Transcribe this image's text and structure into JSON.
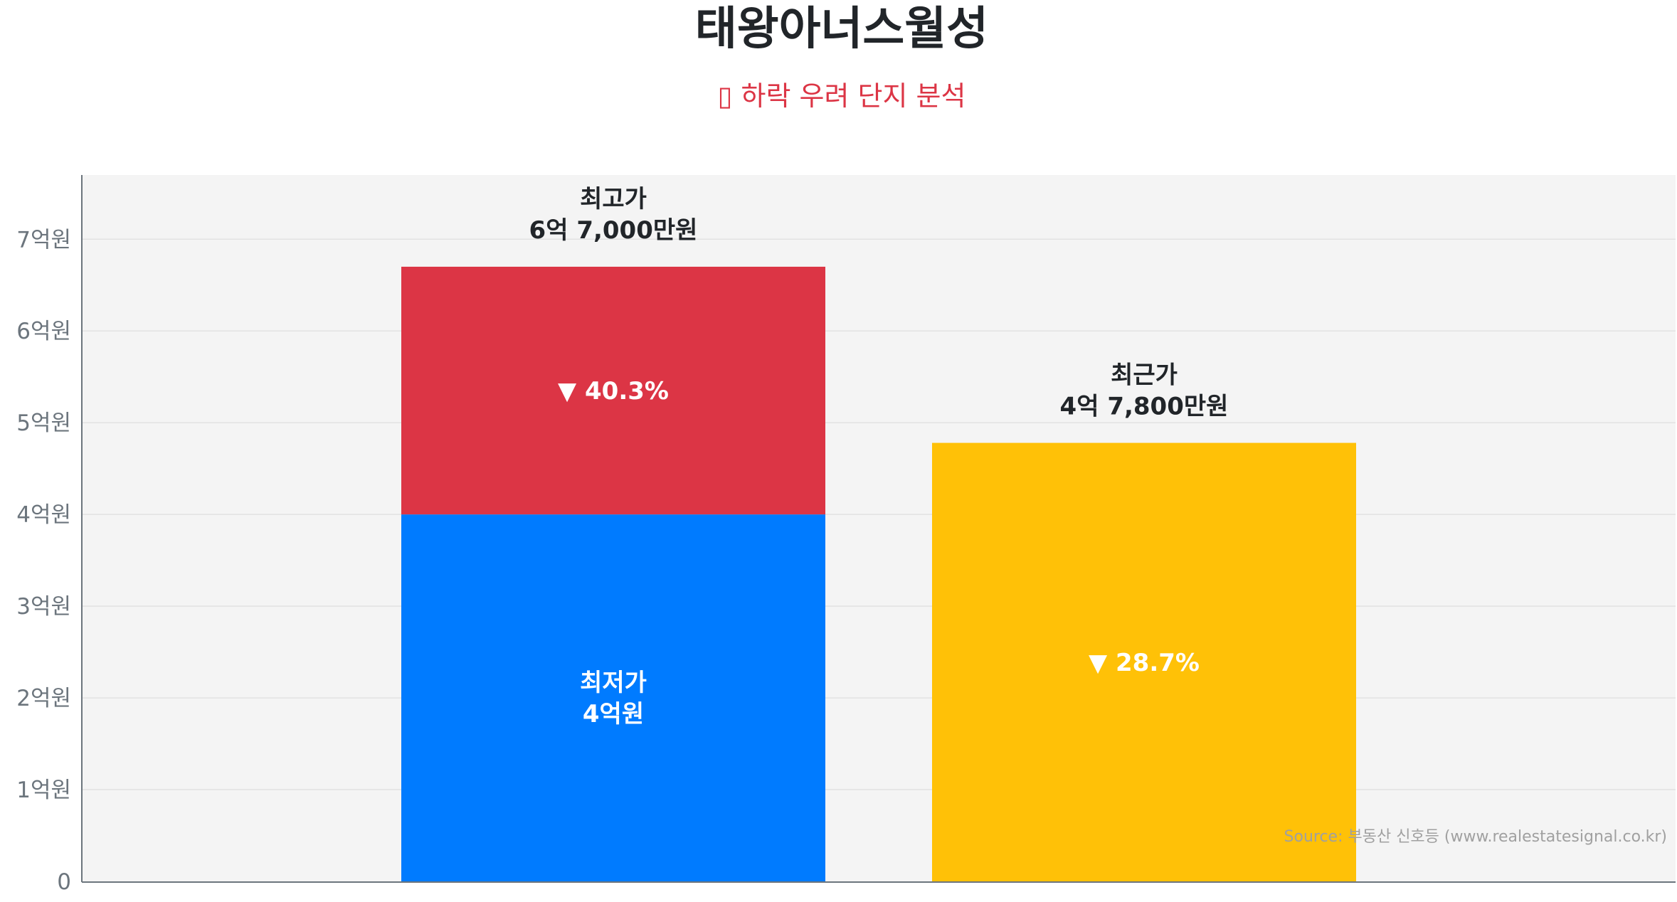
{
  "chart_data": {
    "type": "bar",
    "title": "태왕아너스월성",
    "subtitle": "▯ 하락 우려 단지 분석",
    "ylim": [
      0,
      7.7
    ],
    "yunit": "억원",
    "yticks": [
      {
        "value": 0,
        "label": "0"
      },
      {
        "value": 1,
        "label": "1억원"
      },
      {
        "value": 2,
        "label": "2억원"
      },
      {
        "value": 3,
        "label": "3억원"
      },
      {
        "value": 4,
        "label": "4억원"
      },
      {
        "value": 5,
        "label": "5억원"
      },
      {
        "value": 6,
        "label": "6억원"
      },
      {
        "value": 7,
        "label": "7억원"
      }
    ],
    "grid": true,
    "bars": [
      {
        "segments": [
          {
            "from": 0,
            "to": 4.0,
            "color": "#007bff",
            "label": [
              "최저가",
              "4억원"
            ],
            "label_color": "#ffffff"
          },
          {
            "from": 4.0,
            "to": 6.7,
            "color": "#dc3545",
            "label": [
              "▼ 40.3%"
            ],
            "label_color": "#ffffff"
          }
        ],
        "top_label": [
          "최고가",
          "6억 7,000만원"
        ]
      },
      {
        "segments": [
          {
            "from": 0,
            "to": 4.78,
            "color": "#ffc107",
            "label": [
              "▼ 28.7%"
            ],
            "label_color": "#ffffff"
          }
        ],
        "top_label": [
          "최근가",
          "4억 7,800만원"
        ]
      }
    ],
    "source": "Source: 부동산 신호등 (www.realestatesignal.co.kr)",
    "colors": {
      "plot_bg": "#f4f4f4",
      "grid": "#e2e2e2",
      "axis": "#6c757d",
      "text": "#212529"
    }
  }
}
